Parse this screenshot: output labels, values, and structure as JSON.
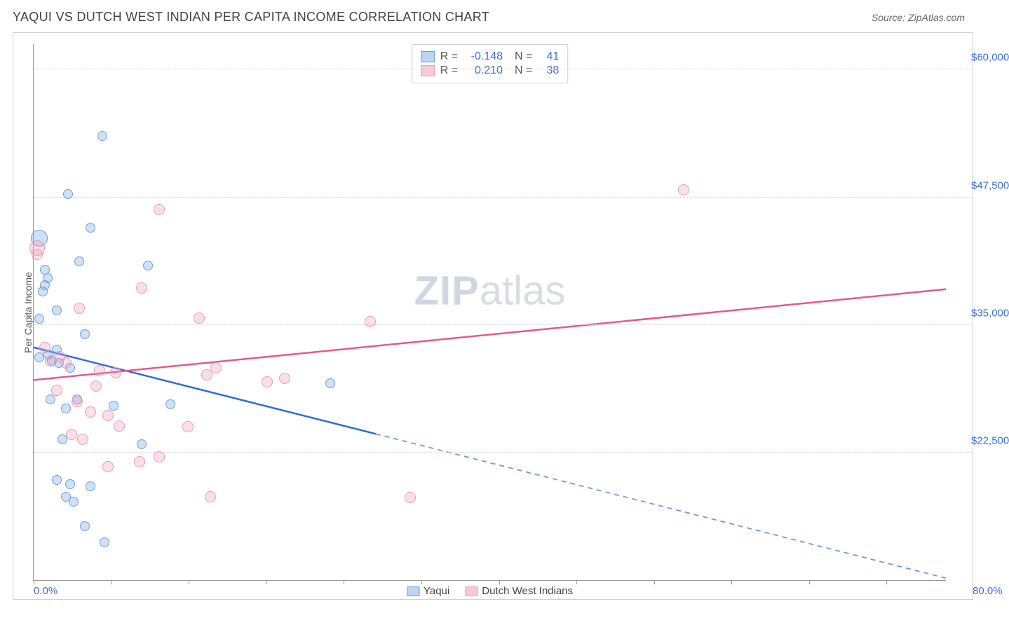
{
  "header": {
    "title": "YAQUI VS DUTCH WEST INDIAN PER CAPITA INCOME CORRELATION CHART",
    "source": "Source: ZipAtlas.com"
  },
  "watermark": {
    "bold": "ZIP",
    "light": "atlas"
  },
  "chart": {
    "type": "scatter",
    "ylabel": "Per Capita Income",
    "xlim": [
      0,
      80
    ],
    "ylim": [
      10000,
      62500
    ],
    "xtick_positions_pct": [
      0,
      8.5,
      17,
      25.5,
      34,
      42.5,
      51,
      59.5,
      68,
      76.5,
      85,
      93.5
    ],
    "xtick_labels": {
      "first": "0.0%",
      "last": "80.0%"
    },
    "yticks": [
      {
        "v": 60000,
        "label": "$60,000"
      },
      {
        "v": 47500,
        "label": "$47,500"
      },
      {
        "v": 35000,
        "label": "$35,000"
      },
      {
        "v": 22500,
        "label": "$22,500"
      }
    ],
    "grid_color": "#d8d8d8",
    "axis_label_color": "#3b6fd6",
    "background_color": "#ffffff",
    "series": [
      {
        "name": "Yaqui",
        "fill": "rgba(120,170,230,0.35)",
        "stroke": "#6aa0e0",
        "line_color": "#2e6fd6",
        "r_value": "-0.148",
        "n_value": "41",
        "trend": {
          "x0": 0,
          "y0": 32800,
          "x1": 80,
          "y1": 10200,
          "dash_after_x": 30
        },
        "points": [
          {
            "x": 6,
            "y": 53500,
            "r": 7
          },
          {
            "x": 0.5,
            "y": 43500,
            "r": 12
          },
          {
            "x": 3,
            "y": 47800,
            "r": 7
          },
          {
            "x": 5,
            "y": 44500,
            "r": 7
          },
          {
            "x": 4,
            "y": 41200,
            "r": 7
          },
          {
            "x": 10,
            "y": 40800,
            "r": 7
          },
          {
            "x": 1,
            "y": 40400,
            "r": 7
          },
          {
            "x": 1.2,
            "y": 39600,
            "r": 7
          },
          {
            "x": 1,
            "y": 38900,
            "r": 7
          },
          {
            "x": 0.8,
            "y": 38300,
            "r": 7
          },
          {
            "x": 2,
            "y": 36400,
            "r": 7
          },
          {
            "x": 0.5,
            "y": 35600,
            "r": 7
          },
          {
            "x": 4.5,
            "y": 34100,
            "r": 7
          },
          {
            "x": 2,
            "y": 32600,
            "r": 7
          },
          {
            "x": 1.3,
            "y": 32100,
            "r": 7
          },
          {
            "x": 0.5,
            "y": 31800,
            "r": 7
          },
          {
            "x": 1.6,
            "y": 31500,
            "r": 7
          },
          {
            "x": 2.2,
            "y": 31300,
            "r": 7
          },
          {
            "x": 3.2,
            "y": 30800,
            "r": 7
          },
          {
            "x": 26,
            "y": 29300,
            "r": 7
          },
          {
            "x": 1.5,
            "y": 27700,
            "r": 7
          },
          {
            "x": 3.8,
            "y": 27700,
            "r": 7
          },
          {
            "x": 7,
            "y": 27100,
            "r": 7
          },
          {
            "x": 12,
            "y": 27200,
            "r": 7
          },
          {
            "x": 2.8,
            "y": 26800,
            "r": 7
          },
          {
            "x": 2.5,
            "y": 23800,
            "r": 7
          },
          {
            "x": 9.5,
            "y": 23300,
            "r": 7
          },
          {
            "x": 2,
            "y": 19800,
            "r": 7
          },
          {
            "x": 3.2,
            "y": 19400,
            "r": 7
          },
          {
            "x": 5,
            "y": 19200,
            "r": 7
          },
          {
            "x": 4.5,
            "y": 15300,
            "r": 7
          },
          {
            "x": 2.8,
            "y": 18200,
            "r": 7
          },
          {
            "x": 3.5,
            "y": 17700,
            "r": 7
          },
          {
            "x": 6.2,
            "y": 13700,
            "r": 7
          }
        ]
      },
      {
        "name": "Dutch West Indians",
        "fill": "rgba(240,150,180,0.30)",
        "stroke": "#e89ab6",
        "line_color": "#e55a8a",
        "r_value": "0.210",
        "n_value": "38",
        "trend": {
          "x0": 0,
          "y0": 29600,
          "x1": 80,
          "y1": 38500,
          "dash_after_x": 999
        },
        "points": [
          {
            "x": 11,
            "y": 46300,
            "r": 8
          },
          {
            "x": 57,
            "y": 48200,
            "r": 8
          },
          {
            "x": 0.3,
            "y": 42500,
            "r": 11
          },
          {
            "x": 0.3,
            "y": 41900,
            "r": 8
          },
          {
            "x": 9.5,
            "y": 38600,
            "r": 8
          },
          {
            "x": 4,
            "y": 36600,
            "r": 8
          },
          {
            "x": 14.5,
            "y": 35700,
            "r": 8
          },
          {
            "x": 29.5,
            "y": 35300,
            "r": 8
          },
          {
            "x": 1,
            "y": 32800,
            "r": 8
          },
          {
            "x": 2.3,
            "y": 31900,
            "r": 8
          },
          {
            "x": 1.5,
            "y": 31500,
            "r": 8
          },
          {
            "x": 2.8,
            "y": 31300,
            "r": 8
          },
          {
            "x": 5.8,
            "y": 30500,
            "r": 8
          },
          {
            "x": 7.2,
            "y": 30300,
            "r": 8
          },
          {
            "x": 16,
            "y": 30800,
            "r": 8
          },
          {
            "x": 15.2,
            "y": 30100,
            "r": 8
          },
          {
            "x": 22,
            "y": 29800,
            "r": 8
          },
          {
            "x": 20.5,
            "y": 29400,
            "r": 8
          },
          {
            "x": 5.5,
            "y": 29000,
            "r": 8
          },
          {
            "x": 2,
            "y": 28600,
            "r": 8
          },
          {
            "x": 3.8,
            "y": 27500,
            "r": 8
          },
          {
            "x": 5,
            "y": 26500,
            "r": 8
          },
          {
            "x": 6.5,
            "y": 26100,
            "r": 8
          },
          {
            "x": 7.5,
            "y": 25100,
            "r": 8
          },
          {
            "x": 13.5,
            "y": 25000,
            "r": 8
          },
          {
            "x": 3.3,
            "y": 24300,
            "r": 8
          },
          {
            "x": 4.3,
            "y": 23800,
            "r": 8
          },
          {
            "x": 11,
            "y": 22100,
            "r": 8
          },
          {
            "x": 9.3,
            "y": 21600,
            "r": 8
          },
          {
            "x": 6.5,
            "y": 21100,
            "r": 8
          },
          {
            "x": 15.5,
            "y": 18200,
            "r": 8
          },
          {
            "x": 33,
            "y": 18100,
            "r": 8
          }
        ]
      }
    ],
    "legend_bottom": [
      {
        "label": "Yaqui",
        "fill": "rgba(120,170,230,0.5)",
        "stroke": "#6aa0e0"
      },
      {
        "label": "Dutch West Indians",
        "fill": "rgba(240,150,180,0.5)",
        "stroke": "#e89ab6"
      }
    ]
  }
}
